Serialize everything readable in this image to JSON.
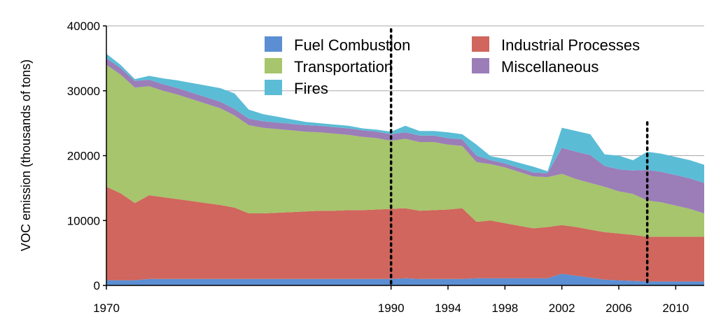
{
  "chart_data": {
    "type": "area",
    "stacked": true,
    "title": "",
    "xlabel": "",
    "ylabel": "VOC emission (thousands of tons)",
    "xlim": [
      1970,
      2012
    ],
    "ylim": [
      0,
      40000
    ],
    "xticks": [
      "1970",
      "1990",
      "1994",
      "1998",
      "2002",
      "2006",
      "2010"
    ],
    "yticks": [
      "0",
      "10000",
      "20000",
      "30000",
      "40000"
    ],
    "grid": true,
    "legend_position": "top-right",
    "vertical_markers": [
      1990,
      2008
    ],
    "x": [
      1970,
      1971,
      1972,
      1973,
      1974,
      1975,
      1976,
      1977,
      1978,
      1979,
      1980,
      1981,
      1982,
      1983,
      1984,
      1985,
      1986,
      1987,
      1988,
      1989,
      1990,
      1991,
      1992,
      1993,
      1994,
      1995,
      1996,
      1997,
      1998,
      1999,
      2000,
      2001,
      2002,
      2003,
      2004,
      2005,
      2006,
      2007,
      2008,
      2009,
      2010,
      2011,
      2012
    ],
    "series": [
      {
        "name": "Fuel Combustion",
        "color": "#5b8ed2",
        "values": [
          800,
          800,
          800,
          1000,
          1000,
          1000,
          1000,
          1000,
          1000,
          1000,
          1000,
          1000,
          1000,
          1000,
          1000,
          1000,
          1000,
          1000,
          1000,
          1000,
          1000,
          1100,
          1000,
          1000,
          1000,
          1000,
          1100,
          1100,
          1100,
          1100,
          1100,
          1100,
          1800,
          1500,
          1200,
          900,
          800,
          700,
          600,
          600,
          600,
          600,
          600
        ]
      },
      {
        "name": "Industrial Processes",
        "color": "#d0665d",
        "values": [
          14400,
          13400,
          11900,
          12900,
          12600,
          12300,
          12000,
          11700,
          11400,
          11000,
          10100,
          10100,
          10200,
          10300,
          10400,
          10500,
          10500,
          10600,
          10600,
          10700,
          10800,
          10800,
          10500,
          10600,
          10700,
          10900,
          8700,
          8900,
          8500,
          8100,
          7700,
          7900,
          7500,
          7500,
          7400,
          7300,
          7200,
          7100,
          6900,
          6900,
          6900,
          6900,
          6900
        ]
      },
      {
        "name": "Transportation",
        "color": "#a6c56c",
        "values": [
          18800,
          18300,
          17800,
          16800,
          16400,
          16100,
          15700,
          15300,
          14900,
          14200,
          13600,
          13200,
          12900,
          12600,
          12300,
          12100,
          11900,
          11600,
          11300,
          11000,
          10500,
          10700,
          10600,
          10500,
          10000,
          9600,
          9200,
          8700,
          8600,
          8300,
          8000,
          7700,
          7900,
          7400,
          7200,
          7000,
          6500,
          6300,
          5600,
          5300,
          4800,
          4300,
          3600
        ]
      },
      {
        "name": "Miscellaneous",
        "color": "#9b7db8",
        "values": [
          1000,
          1000,
          1000,
          1000,
          1000,
          1000,
          1000,
          1000,
          1000,
          1000,
          1000,
          1000,
          1000,
          1000,
          1000,
          1000,
          1000,
          1000,
          1000,
          1000,
          1000,
          1000,
          1000,
          1000,
          1000,
          1000,
          1000,
          600,
          600,
          600,
          600,
          600,
          4000,
          4200,
          4300,
          3200,
          3400,
          3600,
          4700,
          4700,
          4700,
          4700,
          4700
        ]
      },
      {
        "name": "Fires",
        "color": "#5bbcd6",
        "values": [
          700,
          500,
          300,
          600,
          900,
          1200,
          1500,
          1800,
          2100,
          2400,
          1400,
          1100,
          900,
          700,
          500,
          400,
          400,
          400,
          300,
          300,
          400,
          1000,
          700,
          700,
          900,
          800,
          1700,
          600,
          700,
          800,
          900,
          300,
          3100,
          3200,
          3200,
          1800,
          2100,
          1600,
          2800,
          2800,
          2800,
          2800,
          2800
        ]
      }
    ]
  }
}
